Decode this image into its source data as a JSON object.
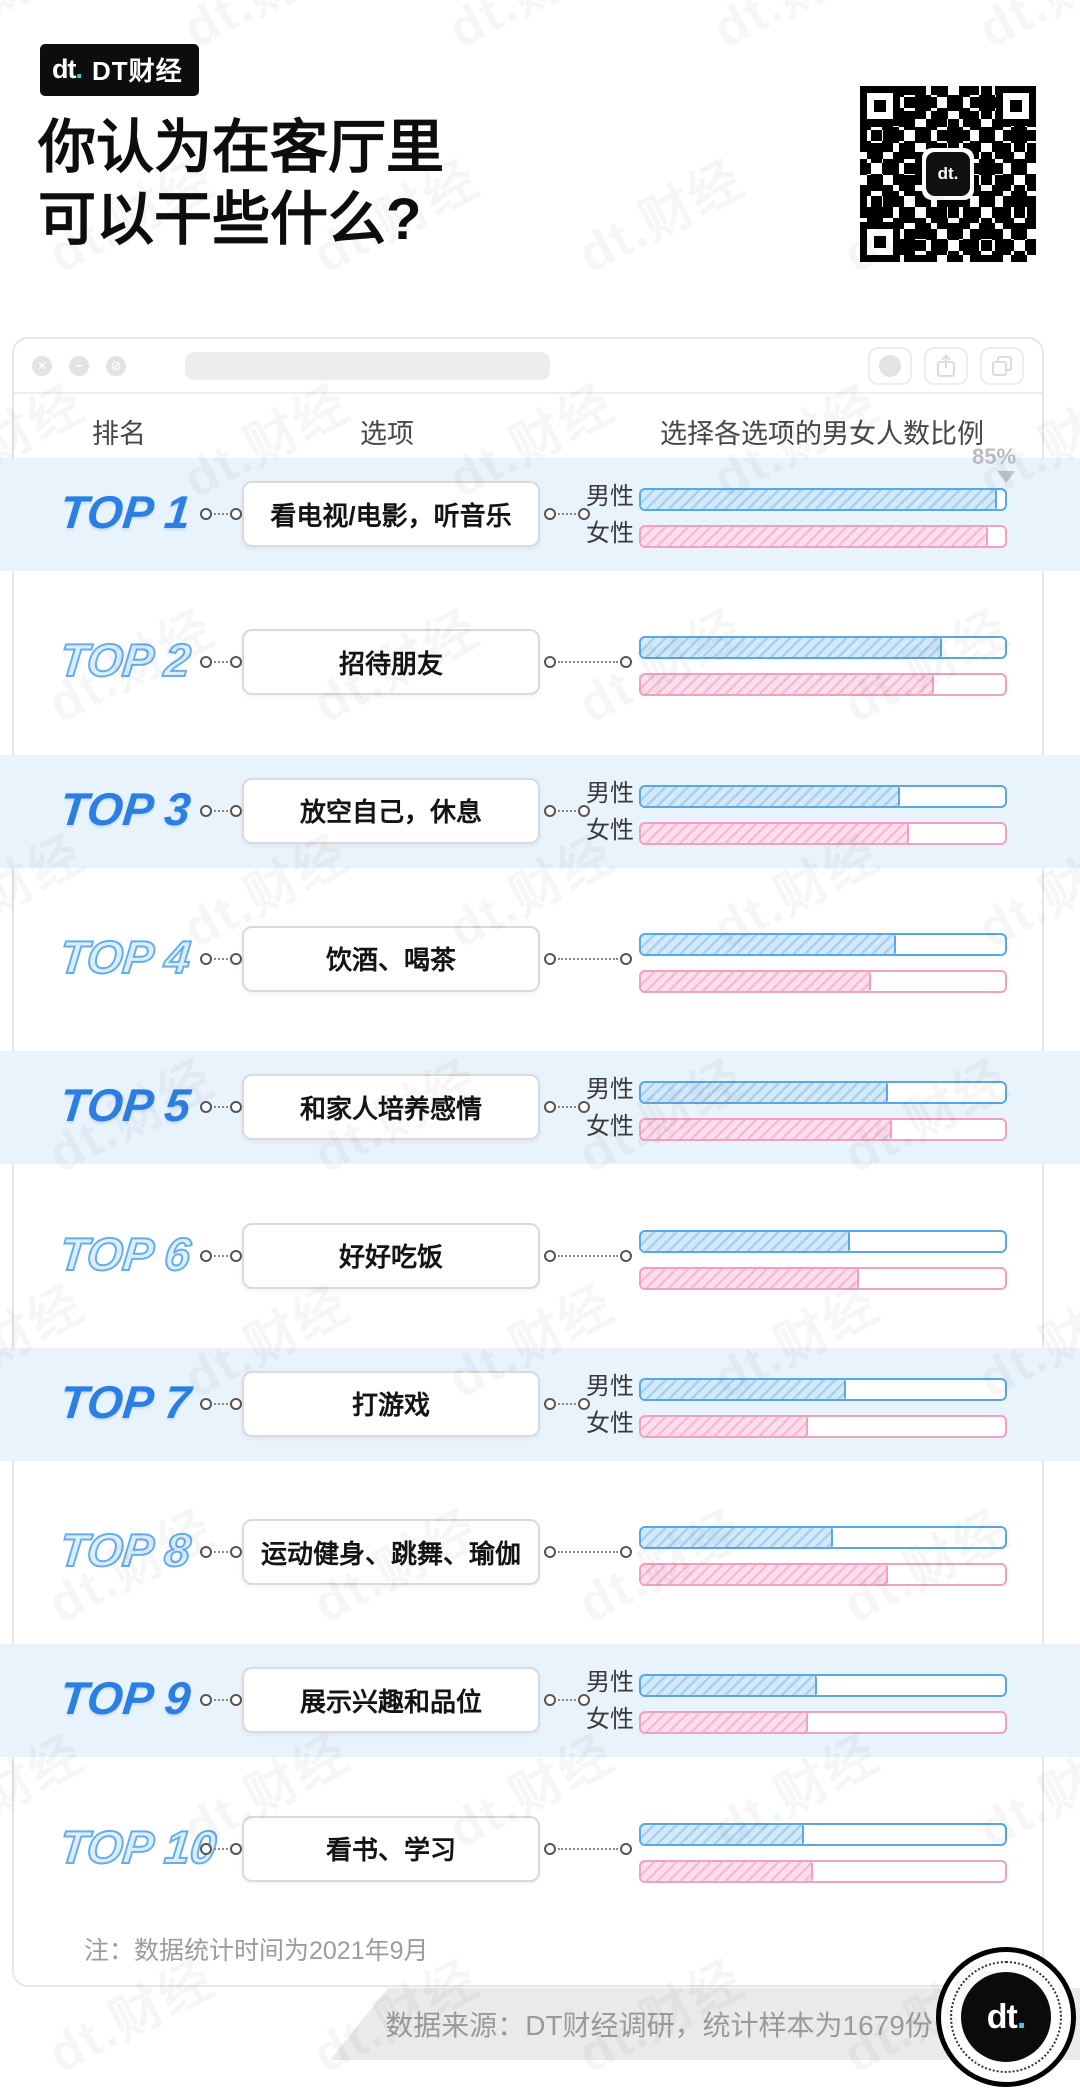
{
  "brand": {
    "logo_text": "dt",
    "logo_dot": ".",
    "badge_label": "DT财经",
    "watermark": "dt.财经"
  },
  "title": {
    "line1": "你认为在客厅里",
    "line2": "可以干些什么?"
  },
  "window": {
    "controls": {
      "close_glyph": "×",
      "minimize_glyph": "−",
      "block_glyph": "⊘"
    },
    "table_headers": {
      "rank": "排名",
      "option": "选项",
      "bars": "选择各选项的男女人数比例"
    },
    "max_label": "85%"
  },
  "legend": {
    "male": "男性",
    "female": "女性"
  },
  "rows": [
    {
      "rank_label": "TOP 1",
      "option": "看电视/电影，听音乐",
      "male": 85,
      "female": 83,
      "highlight": true,
      "label_style": "solid",
      "show_gender_labels": true
    },
    {
      "rank_label": "TOP 2",
      "option": "招待朋友",
      "male": 72,
      "female": 70,
      "highlight": false,
      "label_style": "outline",
      "show_gender_labels": false
    },
    {
      "rank_label": "TOP 3",
      "option": "放空自己，休息",
      "male": 62,
      "female": 64,
      "highlight": true,
      "label_style": "solid",
      "show_gender_labels": true
    },
    {
      "rank_label": "TOP 4",
      "option": "饮酒、喝茶",
      "male": 61,
      "female": 55,
      "highlight": false,
      "label_style": "outline",
      "show_gender_labels": false
    },
    {
      "rank_label": "TOP 5",
      "option": "和家人培养感情",
      "male": 59,
      "female": 60,
      "highlight": true,
      "label_style": "solid",
      "show_gender_labels": true
    },
    {
      "rank_label": "TOP 6",
      "option": "好好吃饭",
      "male": 50,
      "female": 52,
      "highlight": false,
      "label_style": "outline",
      "show_gender_labels": false
    },
    {
      "rank_label": "TOP 7",
      "option": "打游戏",
      "male": 49,
      "female": 40,
      "highlight": true,
      "label_style": "solid",
      "show_gender_labels": true
    },
    {
      "rank_label": "TOP 8",
      "option": "运动健身、跳舞、瑜伽",
      "male": 46,
      "female": 59,
      "highlight": false,
      "label_style": "outline",
      "show_gender_labels": false
    },
    {
      "rank_label": "TOP 9",
      "option": "展示兴趣和品位",
      "male": 42,
      "female": 40,
      "highlight": true,
      "label_style": "solid",
      "show_gender_labels": true
    },
    {
      "rank_label": "TOP 10",
      "option": "看书、学习",
      "male": 39,
      "female": 41,
      "highlight": false,
      "label_style": "outline",
      "show_gender_labels": false
    }
  ],
  "footnote": "注：数据统计时间为2021年9月",
  "source": "数据来源：DT财经调研，统计样本为1679份",
  "colors": {
    "male_stroke": "#58a8e6",
    "male_fill": "#d3e9f9",
    "male_hatch": "#a6d2f0",
    "female_stroke": "#f2a0c2",
    "female_fill": "#fcdfeb",
    "female_hatch": "#f4bcd6",
    "band": "#e9f3fc",
    "top_solid": "#2b7fe3",
    "top_outline": "#64aeec",
    "brand_cyan": "#41c7e6",
    "max_marker": "#c3c3c3"
  },
  "chart_data": {
    "type": "bar",
    "orientation": "horizontal",
    "title": "你认为在客厅里可以干些什么?",
    "categories": [
      "看电视/电影，听音乐",
      "招待朋友",
      "放空自己，休息",
      "饮酒、喝茶",
      "和家人培养感情",
      "好好吃饭",
      "打游戏",
      "运动健身、跳舞、瑜伽",
      "展示兴趣和品位",
      "看书、学习"
    ],
    "rank_labels": [
      "TOP 1",
      "TOP 2",
      "TOP 3",
      "TOP 4",
      "TOP 5",
      "TOP 6",
      "TOP 7",
      "TOP 8",
      "TOP 9",
      "TOP 10"
    ],
    "series": [
      {
        "name": "男性",
        "values": [
          85,
          72,
          62,
          61,
          59,
          50,
          49,
          46,
          42,
          39
        ]
      },
      {
        "name": "女性",
        "values": [
          83,
          70,
          64,
          55,
          60,
          52,
          40,
          59,
          40,
          41
        ]
      }
    ],
    "unit": "%",
    "xlim": [
      0,
      87
    ],
    "annotations": [
      {
        "text": "85%",
        "target": "TOP 1 男性"
      }
    ],
    "grid": false,
    "legend_position": "row-left (男性/女性 labels on highlighted rows)",
    "note": "注：数据统计时间为2021年9月",
    "source": "数据来源：DT财经调研，统计样本为1679份"
  }
}
